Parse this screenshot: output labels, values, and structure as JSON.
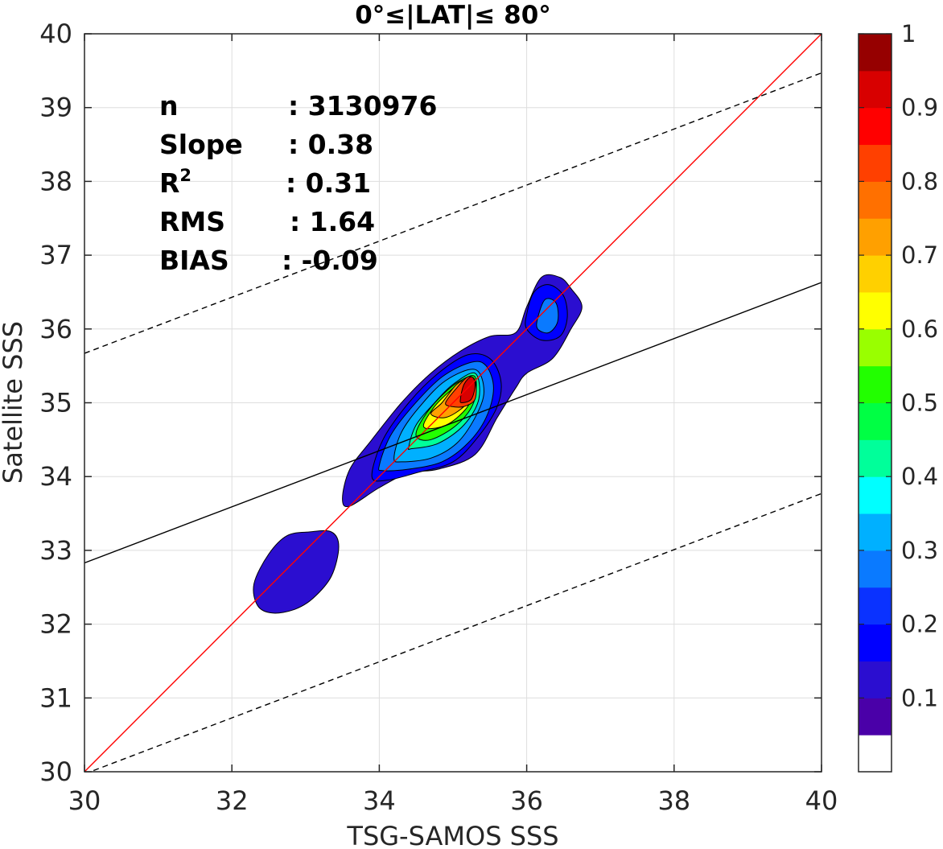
{
  "chart_data": {
    "type": "contourf",
    "title": "0°≤|LAT|≤ 80°",
    "xlabel": "TSG-SAMOS SSS",
    "ylabel": "Satellite SSS",
    "xlim": [
      30,
      40
    ],
    "ylim": [
      30,
      40
    ],
    "xticks": [
      "30",
      "32",
      "34",
      "36",
      "38",
      "40"
    ],
    "yticks": [
      "30",
      "31",
      "32",
      "33",
      "34",
      "35",
      "36",
      "37",
      "38",
      "39",
      "40"
    ],
    "grid": true,
    "stats": [
      {
        "label": "n",
        "value": ": 3130976"
      },
      {
        "label": "Slope",
        "value": ": 0.38"
      },
      {
        "label": "R",
        "sup": "2",
        "value": ": 0.31"
      },
      {
        "label": "RMS",
        "value": ": 1.64"
      },
      {
        "label": "BIAS",
        "value": ": -0.09"
      }
    ],
    "lines": {
      "identity": {
        "slope": 1,
        "intercept": 0,
        "color": "#ff0000"
      },
      "regression": {
        "slope": 0.38,
        "intercept": 21.43,
        "color": "#000000"
      },
      "upper_bound": {
        "slope": 0.38,
        "intercept": 24.27,
        "color": "#000000",
        "dash": true
      },
      "lower_bound": {
        "slope": 0.38,
        "intercept": 18.57,
        "color": "#000000",
        "dash": true
      }
    },
    "colorbar": {
      "range": [
        0,
        1
      ],
      "ticks": [
        "0.1",
        "0.2",
        "0.3",
        "0.4",
        "0.5",
        "0.6",
        "0.7",
        "0.8",
        "0.9",
        "1"
      ],
      "colors": [
        "#ffffff",
        "#4a00a8",
        "#2b0ed0",
        "#0000ff",
        "#0a32ff",
        "#0a7aff",
        "#00b0ff",
        "#00ffff",
        "#00ff9a",
        "#00ff44",
        "#22ff00",
        "#99ff00",
        "#ffff00",
        "#ffd000",
        "#ffa000",
        "#ff7000",
        "#ff4000",
        "#ff0000",
        "#d80000",
        "#960000"
      ]
    },
    "density_levels": [
      {
        "level": 0.1,
        "color": "#2b0ed0",
        "regions": [
          [
            [
              33.5,
              33.7
            ],
            [
              33.6,
              34.1
            ],
            [
              33.9,
              34.5
            ],
            [
              34.3,
              35.0
            ],
            [
              34.7,
              35.4
            ],
            [
              35.1,
              35.7
            ],
            [
              35.5,
              35.9
            ],
            [
              35.85,
              35.95
            ],
            [
              36.0,
              36.3
            ],
            [
              36.2,
              36.7
            ],
            [
              36.45,
              36.7
            ],
            [
              36.6,
              36.55
            ],
            [
              36.75,
              36.3
            ],
            [
              36.6,
              36.0
            ],
            [
              36.35,
              35.6
            ],
            [
              36.0,
              35.4
            ],
            [
              35.85,
              35.2
            ],
            [
              35.6,
              34.8
            ],
            [
              35.3,
              34.3
            ],
            [
              34.8,
              34.1
            ],
            [
              34.4,
              34.05
            ],
            [
              34.0,
              33.85
            ],
            [
              33.6,
              33.6
            ]
          ],
          [
            [
              32.3,
              32.55
            ],
            [
              32.5,
              32.95
            ],
            [
              32.75,
              33.2
            ],
            [
              33.05,
              33.25
            ],
            [
              33.35,
              33.25
            ],
            [
              33.45,
              33.05
            ],
            [
              33.35,
              32.65
            ],
            [
              33.1,
              32.35
            ],
            [
              32.85,
              32.2
            ],
            [
              32.55,
              32.15
            ],
            [
              32.35,
              32.25
            ]
          ]
        ]
      },
      {
        "level": 0.2,
        "color": "#0000ff",
        "regions": [
          [
            [
              33.9,
              34.0
            ],
            [
              34.05,
              34.5
            ],
            [
              34.4,
              35.0
            ],
            [
              34.8,
              35.4
            ],
            [
              35.2,
              35.65
            ],
            [
              35.5,
              35.6
            ],
            [
              35.65,
              35.3
            ],
            [
              35.6,
              34.95
            ],
            [
              35.35,
              34.55
            ],
            [
              35.0,
              34.2
            ],
            [
              34.5,
              34.05
            ],
            [
              34.1,
              33.95
            ]
          ],
          [
            [
              36.0,
              36.2
            ],
            [
              36.1,
              36.5
            ],
            [
              36.3,
              36.6
            ],
            [
              36.5,
              36.45
            ],
            [
              36.55,
              36.15
            ],
            [
              36.45,
              35.9
            ],
            [
              36.2,
              35.85
            ],
            [
              36.0,
              36.0
            ]
          ]
        ]
      },
      {
        "level": 0.3,
        "color": "#0a7aff",
        "regions": [
          [
            [
              34.0,
              34.15
            ],
            [
              34.15,
              34.55
            ],
            [
              34.45,
              34.95
            ],
            [
              34.85,
              35.35
            ],
            [
              35.25,
              35.55
            ],
            [
              35.45,
              35.5
            ],
            [
              35.55,
              35.2
            ],
            [
              35.45,
              34.8
            ],
            [
              35.2,
              34.45
            ],
            [
              34.85,
              34.2
            ],
            [
              34.4,
              34.1
            ],
            [
              34.05,
              34.08
            ]
          ],
          [
            [
              36.15,
              36.15
            ],
            [
              36.25,
              36.4
            ],
            [
              36.4,
              36.35
            ],
            [
              36.42,
              36.1
            ],
            [
              36.3,
              35.95
            ],
            [
              36.15,
              36.0
            ]
          ]
        ]
      },
      {
        "level": 0.4,
        "color": "#00b0ff",
        "regions": [
          [
            [
              34.2,
              34.25
            ],
            [
              34.3,
              34.6
            ],
            [
              34.55,
              34.95
            ],
            [
              34.9,
              35.3
            ],
            [
              35.3,
              35.45
            ],
            [
              35.42,
              35.15
            ],
            [
              35.3,
              34.8
            ],
            [
              35.05,
              34.45
            ],
            [
              34.7,
              34.25
            ],
            [
              34.3,
              34.2
            ]
          ]
        ]
      },
      {
        "level": 0.5,
        "color": "#00ff9a",
        "regions": [
          [
            [
              34.4,
              34.4
            ],
            [
              34.5,
              34.7
            ],
            [
              34.75,
              35.0
            ],
            [
              35.0,
              35.25
            ],
            [
              35.3,
              35.4
            ],
            [
              35.35,
              35.05
            ],
            [
              35.15,
              34.7
            ],
            [
              34.8,
              34.45
            ],
            [
              34.45,
              34.38
            ]
          ]
        ]
      },
      {
        "level": 0.6,
        "color": "#22ff00",
        "regions": [
          [
            [
              34.5,
              34.55
            ],
            [
              34.6,
              34.8
            ],
            [
              34.85,
              35.1
            ],
            [
              35.1,
              35.3
            ],
            [
              35.3,
              35.35
            ],
            [
              35.28,
              35.0
            ],
            [
              35.05,
              34.7
            ],
            [
              34.7,
              34.5
            ]
          ]
        ]
      },
      {
        "level": 0.7,
        "color": "#ffff00",
        "regions": [
          [
            [
              34.6,
              34.7
            ],
            [
              34.75,
              34.95
            ],
            [
              34.95,
              35.15
            ],
            [
              35.15,
              35.3
            ],
            [
              35.28,
              35.2
            ],
            [
              35.2,
              34.95
            ],
            [
              34.95,
              34.72
            ],
            [
              34.7,
              34.65
            ]
          ]
        ]
      },
      {
        "level": 0.8,
        "color": "#ffa000",
        "regions": [
          [
            [
              34.7,
              34.85
            ],
            [
              34.85,
              35.0
            ],
            [
              35.05,
              35.25
            ],
            [
              35.2,
              35.3
            ],
            [
              35.28,
              35.15
            ],
            [
              35.15,
              34.95
            ],
            [
              34.9,
              34.8
            ]
          ]
        ]
      },
      {
        "level": 0.9,
        "color": "#ff4000",
        "regions": [
          [
            [
              34.9,
              35.0
            ],
            [
              35.05,
              35.2
            ],
            [
              35.2,
              35.35
            ],
            [
              35.3,
              35.3
            ],
            [
              35.3,
              35.05
            ],
            [
              35.15,
              34.95
            ],
            [
              34.98,
              34.95
            ]
          ]
        ]
      },
      {
        "level": 1.0,
        "color": "#d80000",
        "regions": [
          [
            [
              35.1,
              35.05
            ],
            [
              35.15,
              35.25
            ],
            [
              35.25,
              35.35
            ],
            [
              35.3,
              35.25
            ],
            [
              35.25,
              35.05
            ],
            [
              35.12,
              35.0
            ]
          ]
        ]
      }
    ]
  }
}
